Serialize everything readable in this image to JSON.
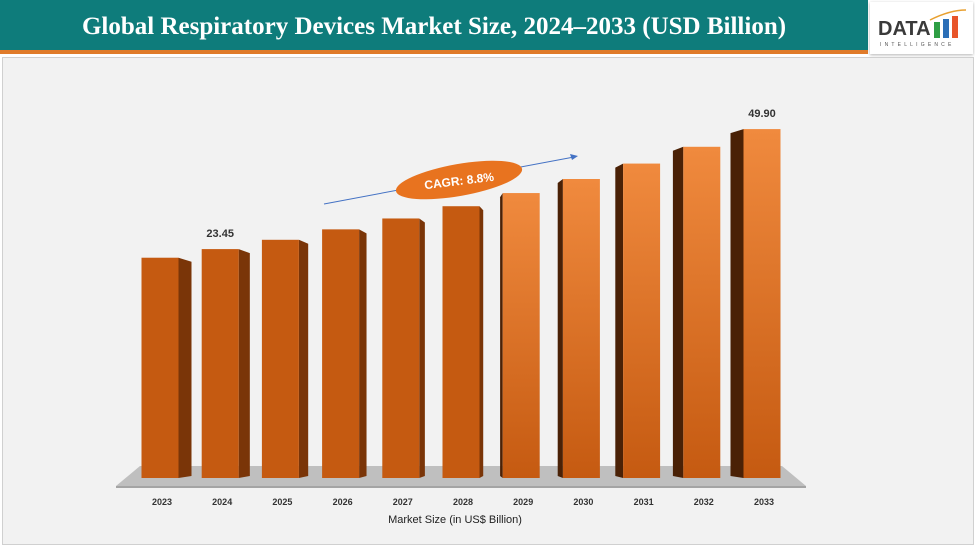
{
  "header": {
    "title": "Global Respiratory Devices Market Size, 2024–2033 (USD Billion)"
  },
  "logo": {
    "text": "DATA",
    "subtext": "INTELLIGENCE"
  },
  "chart_data": {
    "type": "bar",
    "categories": [
      "2023",
      "2024",
      "2025",
      "2026",
      "2027",
      "2028",
      "2029",
      "2030",
      "2031",
      "2032",
      "2033"
    ],
    "values": [
      21.55,
      23.45,
      25.5,
      27.8,
      30.2,
      32.9,
      35.8,
      38.9,
      42.3,
      46.0,
      49.9
    ],
    "data_labels": {
      "1": "23.45",
      "10": "49.90"
    },
    "xlabel": "Market Size (in US$ Billion)",
    "annotation": "CAGR: 8.8%",
    "colors": {
      "bar_front": "#c55a11",
      "bar_highlight": "#f08a3e",
      "bar_side": "#7a3508",
      "bar_side_dark": "#4a2106",
      "floor": "#bfbfbf",
      "arrow": "#4472c4",
      "header": "#0e7c7b",
      "accent": "#e07b2a"
    },
    "grid": false,
    "legend": "none"
  }
}
